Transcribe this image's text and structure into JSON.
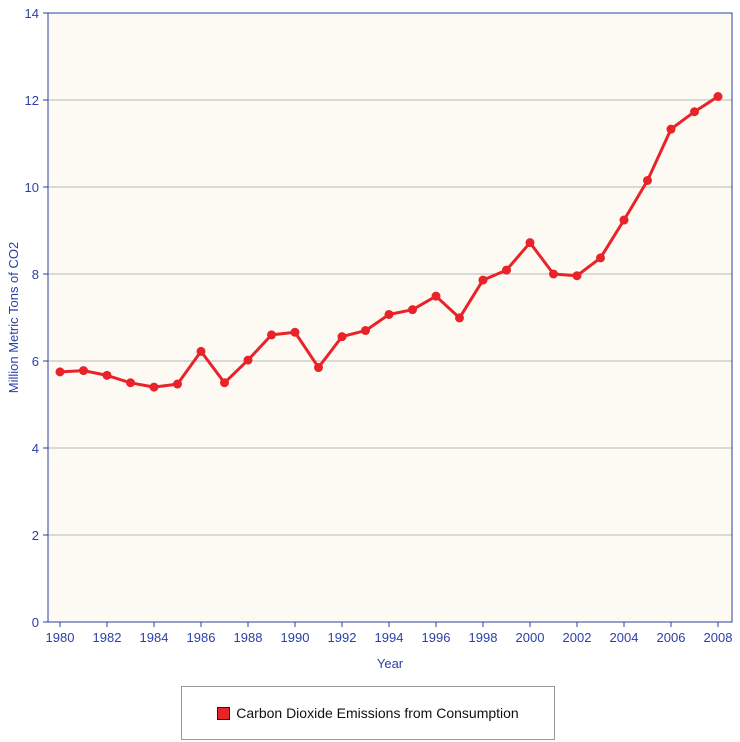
{
  "chart_data": {
    "type": "line",
    "title": "",
    "xlabel": "Year",
    "ylabel": "Million Metric Tons of CO2",
    "ylim": [
      0,
      14
    ],
    "y_ticks": [
      "0",
      "2",
      "4",
      "6",
      "8",
      "10",
      "12",
      "14"
    ],
    "x_tick_labels": [
      "1980",
      "1982",
      "1984",
      "1986",
      "1988",
      "1990",
      "1992",
      "1994",
      "1996",
      "1998",
      "2000",
      "2002",
      "2004",
      "2006",
      "2008"
    ],
    "x": [
      1980,
      1981,
      1982,
      1983,
      1984,
      1985,
      1986,
      1987,
      1988,
      1989,
      1990,
      1991,
      1992,
      1993,
      1994,
      1995,
      1996,
      1997,
      1998,
      1999,
      2000,
      2001,
      2002,
      2003,
      2004,
      2005,
      2006,
      2007,
      2008
    ],
    "series": [
      {
        "name": "Carbon Dioxide Emissions from Consumption",
        "color": "#e8232a",
        "values": [
          5.75,
          5.78,
          5.67,
          5.5,
          5.4,
          5.47,
          6.22,
          5.5,
          6.02,
          6.6,
          6.66,
          5.85,
          6.56,
          6.7,
          7.07,
          7.18,
          7.49,
          6.99,
          7.86,
          8.09,
          8.72,
          8.0,
          7.96,
          8.37,
          9.24,
          10.15,
          11.33,
          11.73,
          12.08
        ]
      }
    ],
    "grid": "horizontal",
    "legend_position": "bottom-center",
    "plot_background": "#fcfaf3",
    "axis_color": "#2b3fa6",
    "grid_color": "#b8b8b8"
  }
}
